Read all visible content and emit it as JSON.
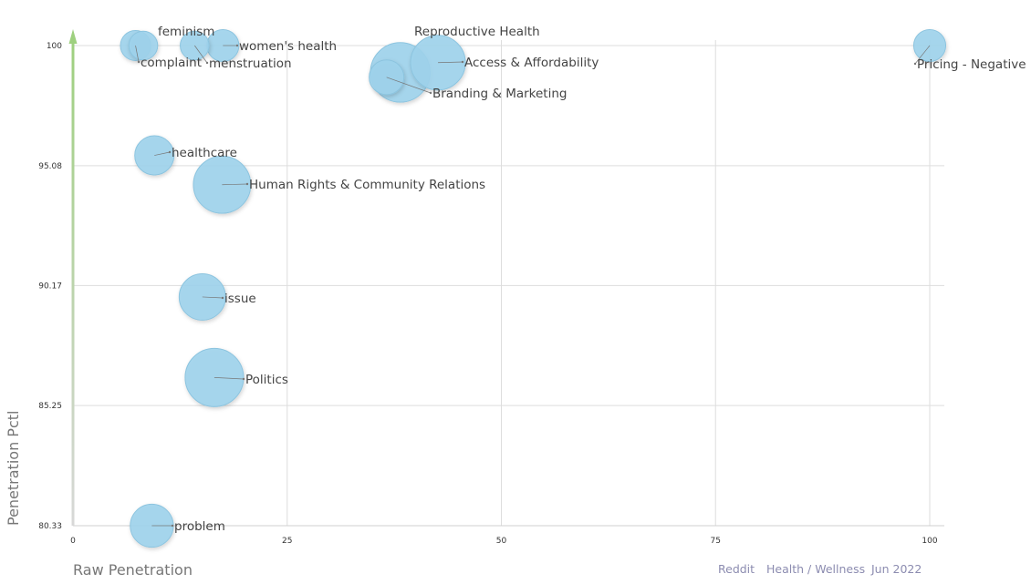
{
  "chart_data": {
    "type": "scatter",
    "subtype": "bubble",
    "xlabel": "Raw Penetration",
    "ylabel": "Penetration Pctl",
    "xlim": [
      0,
      100
    ],
    "ylim": [
      80.33,
      100
    ],
    "x_ticks": [
      "0",
      "25",
      "50",
      "75",
      "100"
    ],
    "y_ticks": [
      "80.33",
      "85.25",
      "90.17",
      "95.08",
      "100"
    ],
    "grid": true,
    "bubble_color": "#9fd3ec",
    "y_axis_arrow_color": "#9ed07f",
    "points": [
      {
        "label": "feminism",
        "x": 8.2,
        "y": 100,
        "size": 1
      },
      {
        "label": "complaint",
        "x": 7.3,
        "y": 100,
        "size": 1.2
      },
      {
        "label": "menstruation",
        "x": 14.2,
        "y": 100,
        "size": 1
      },
      {
        "label": "women's health",
        "x": 17.5,
        "y": 100,
        "size": 1.5
      },
      {
        "label": "Reproductive Health",
        "x": 38.2,
        "y": 98.9,
        "size": 10
      },
      {
        "label": "Access & Affordability",
        "x": 42.6,
        "y": 99.3,
        "size": 8
      },
      {
        "label": "Branding & Marketing",
        "x": 36.6,
        "y": 98.7,
        "size": 2
      },
      {
        "label": "Pricing - Negative",
        "x": 100,
        "y": 100,
        "size": 1.5
      },
      {
        "label": "healthcare",
        "x": 9.5,
        "y": 95.5,
        "size": 3
      },
      {
        "label": "Human Rights & Community Relations",
        "x": 17.4,
        "y": 94.3,
        "size": 9
      },
      {
        "label": "issue",
        "x": 15.1,
        "y": 89.7,
        "size": 5
      },
      {
        "label": "Politics",
        "x": 16.5,
        "y": 86.4,
        "size": 9.5
      },
      {
        "label": "problem",
        "x": 9.2,
        "y": 80.33,
        "size": 4
      }
    ]
  },
  "footer": {
    "source": "Reddit",
    "category": "Health / Wellness",
    "date": "Jun 2022"
  }
}
